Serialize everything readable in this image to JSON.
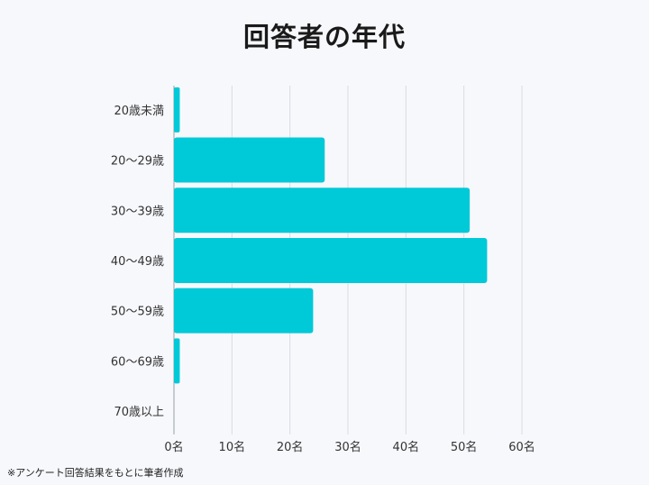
{
  "chart_data": {
    "type": "bar",
    "orientation": "horizontal",
    "title": "回答者の年代",
    "categories": [
      "20歳未満",
      "20〜29歳",
      "30〜39歳",
      "40〜49歳",
      "50〜59歳",
      "60〜69歳",
      "70歳以上"
    ],
    "values": [
      1,
      26,
      51,
      54,
      24,
      1,
      0
    ],
    "x_ticks": [
      "0名",
      "10名",
      "20名",
      "30名",
      "40名",
      "50名",
      "60名"
    ],
    "xlim": [
      0,
      60
    ],
    "grid": true,
    "bar_color": "#00c9d8",
    "grid_color": "#d9dbe0"
  },
  "footnote": "※アンケート回答結果をもとに筆者作成"
}
